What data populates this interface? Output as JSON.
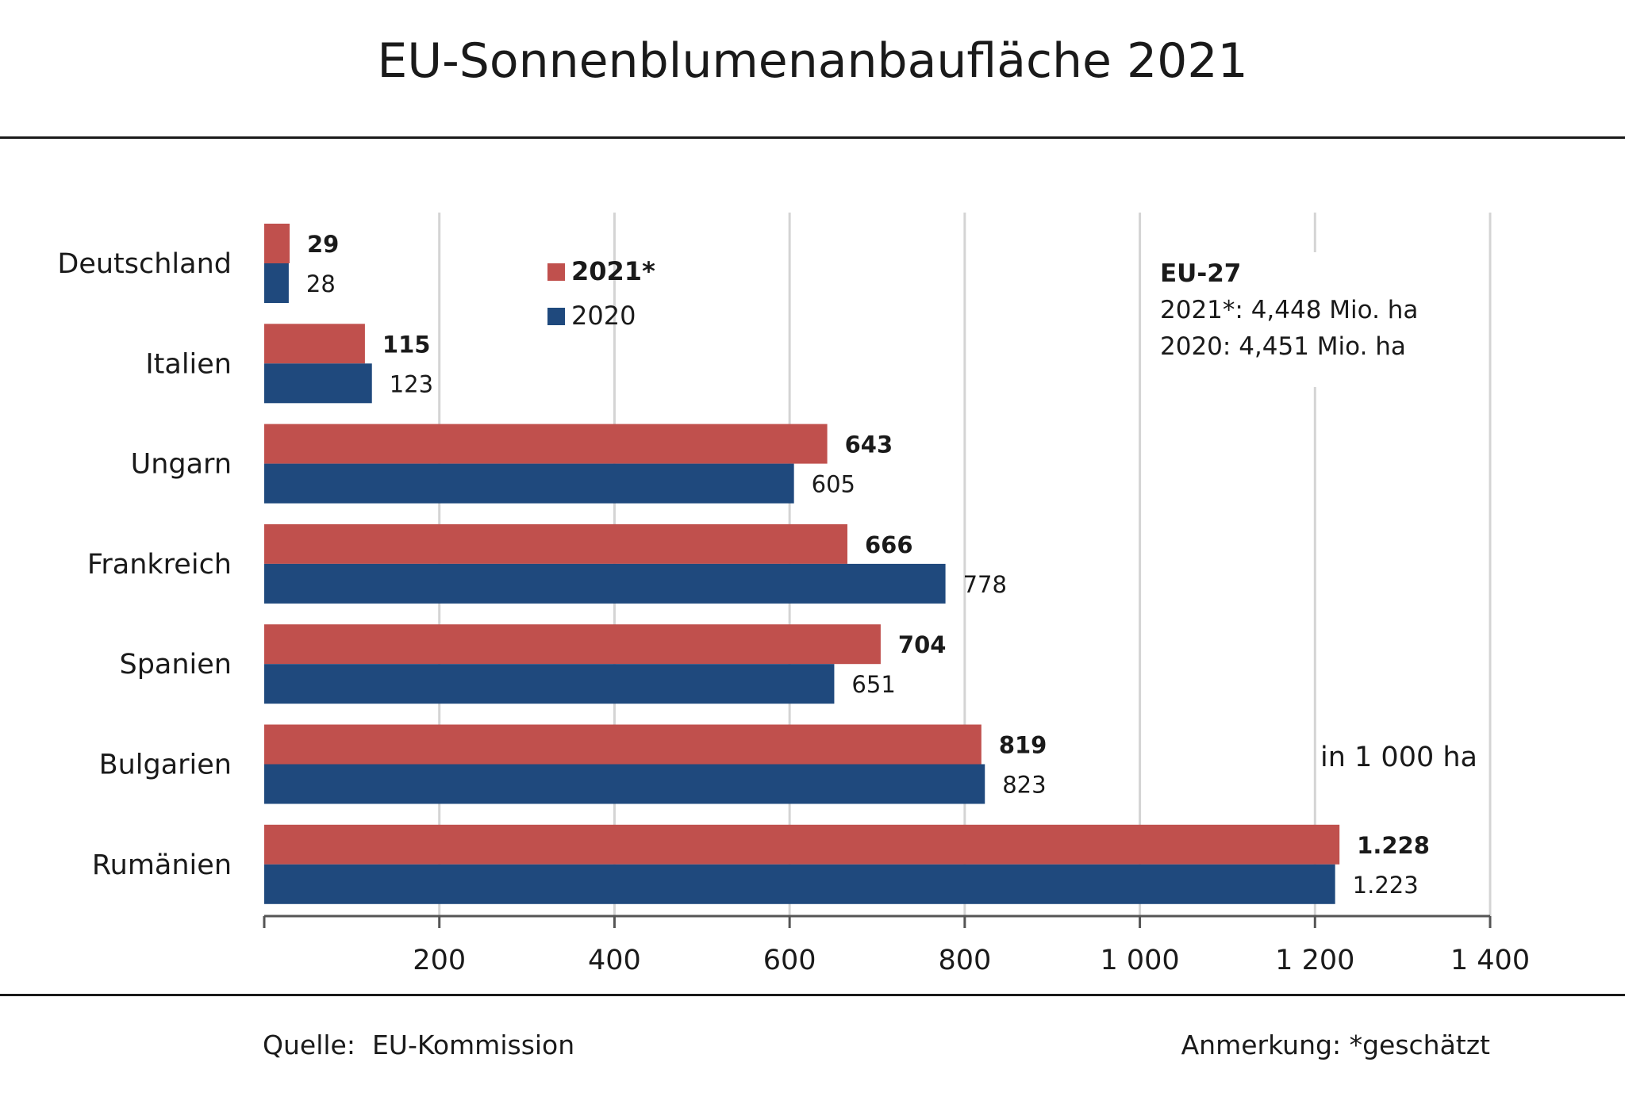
{
  "title": "EU-Sonnenblumenanbaufläche 2021",
  "footer": {
    "source_label": "Quelle:",
    "source_value": "EU-Kommission",
    "note": "Anmerkung: *geschätzt"
  },
  "chart_data": {
    "type": "bar",
    "orientation": "horizontal",
    "title": "EU-Sonnenblumenanbaufläche 2021",
    "unit_label": "in 1 000 ha",
    "categories": [
      "Deutschland",
      "Italien",
      "Ungarn",
      "Frankreich",
      "Spanien",
      "Bulgarien",
      "Rumänien"
    ],
    "series": [
      {
        "name": "2021*",
        "color": "#c0504d",
        "values": [
          29,
          115,
          643,
          666,
          704,
          819,
          1228
        ],
        "labels": [
          "29",
          "115",
          "643",
          "666",
          "704",
          "819",
          "1.228"
        ]
      },
      {
        "name": "2020",
        "color": "#1f497d",
        "values": [
          28,
          123,
          605,
          778,
          651,
          823,
          1223
        ],
        "labels": [
          "28",
          "123",
          "605",
          "778",
          "651",
          "823",
          "1.223"
        ]
      }
    ],
    "xlim": [
      0,
      1400
    ],
    "xticks": [
      200,
      400,
      600,
      800,
      1000,
      1200,
      1400
    ],
    "xtick_labels": [
      "200",
      "400",
      "600",
      "800",
      "1 000",
      "1 200",
      "1 400"
    ],
    "grid": true,
    "legend_position": "top-center",
    "annotation": {
      "title": "EU-27",
      "lines": [
        "2021*: 4,448 Mio. ha",
        "2020: 4,451 Mio. ha"
      ]
    }
  }
}
